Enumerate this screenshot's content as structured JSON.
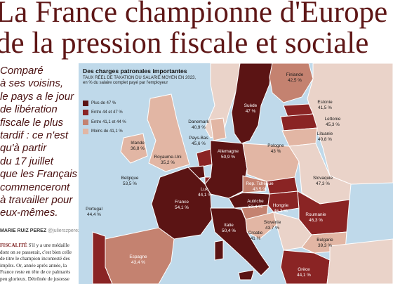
{
  "headline": {
    "line1": "La France championne d'Europe",
    "line2": "de la pression fiscale et sociale"
  },
  "lede": [
    "Comparé",
    "à ses voisins,",
    "le pays a le jour",
    "de libération",
    "fiscale le plus",
    "tardif : ce n'est",
    "qu'à partir",
    "du 17 juillet",
    "que les Français",
    "commenceront",
    "à travailler pour",
    "eux-mêmes."
  ],
  "byline": {
    "author": "MARIE RUIZ PEREZ",
    "handle": "@julierszperez"
  },
  "article": {
    "lead": "FISCALITÉ",
    "lines": [
      " S'il y a une médaille",
      "dont on se passerait, c'est bien celle",
      "de titre le champion incontesté des",
      "impôts. Or, année après année, la",
      "France reste en tête de ce palmarès",
      "peu glorieux. Détrônée de justesse"
    ]
  },
  "infobox": {
    "title": "Des charges patronales importantes",
    "subtitle_line1": "TAUX RÉEL DE TAXATION DU SALARIÉ MOYEN EN 2023,",
    "subtitle_line2": "en % du salaire complet payé par l'employeur"
  },
  "legend": [
    {
      "label": "Plus de 47 %",
      "color": "#5b1414"
    },
    {
      "label": "Entre 44 et 47 %",
      "color": "#8a2424"
    },
    {
      "label": "Entre 41,1 et 44 %",
      "color": "#c48270"
    },
    {
      "label": "Moins de 41,1 %",
      "color": "#e2b6a4"
    }
  ],
  "countries": [
    {
      "id": "finlande",
      "name": "Finlande",
      "value": "42,5 %"
    },
    {
      "id": "suede",
      "name": "Suède",
      "value": "47 %"
    },
    {
      "id": "estonie",
      "name": "Estonie",
      "value": "41,5 %"
    },
    {
      "id": "lettonie",
      "name": "Lettonie",
      "value": "45,3 %"
    },
    {
      "id": "lituanie",
      "name": "Lituanie",
      "value": "40,8 %"
    },
    {
      "id": "danemark",
      "name": "Danemark",
      "value": "40,9 %"
    },
    {
      "id": "paysbas",
      "name": "Pays-Bas",
      "value": "45,6 %"
    },
    {
      "id": "irlande",
      "name": "Irlande",
      "value": "36,8 %"
    },
    {
      "id": "royaumeuni",
      "name": "Royaume-Uni",
      "value": "35,2 %"
    },
    {
      "id": "belgique",
      "name": "Belgique",
      "value": "53,5 %"
    },
    {
      "id": "allemagne",
      "name": "Allemagne",
      "value": "50,9 %"
    },
    {
      "id": "pologne",
      "name": "Pologne",
      "value": "43 %"
    },
    {
      "id": "reptcheque",
      "name": "Rep. Tchèque",
      "value": "43,5 %"
    },
    {
      "id": "slovaquie",
      "name": "Slovaquie",
      "value": "47,3 %"
    },
    {
      "id": "lux",
      "name": "Lux.",
      "value": "44,1 %"
    },
    {
      "id": "france",
      "name": "France",
      "value": "54,1 %"
    },
    {
      "id": "autriche",
      "name": "Autriche",
      "value": "53,4 %"
    },
    {
      "id": "hongrie",
      "name": "Hongrie",
      "value": "46,3 %"
    },
    {
      "id": "roumanie",
      "name": "Roumanie",
      "value": "46,3 %"
    },
    {
      "id": "portugal",
      "name": "Portugal",
      "value": "44,4 %"
    },
    {
      "id": "italie",
      "name": "Italie",
      "value": "50,4 %"
    },
    {
      "id": "slovenie",
      "name": "Slovénie",
      "value": "43,7 %"
    },
    {
      "id": "croatie",
      "name": "Croatie",
      "value": "41 %"
    },
    {
      "id": "bulgarie",
      "name": "Bulgarie",
      "value": "39,3 %"
    },
    {
      "id": "espagne",
      "name": "Espagne",
      "value": "43,4 %"
    },
    {
      "id": "grece",
      "name": "Grèce",
      "value": "44,1 %"
    }
  ]
}
